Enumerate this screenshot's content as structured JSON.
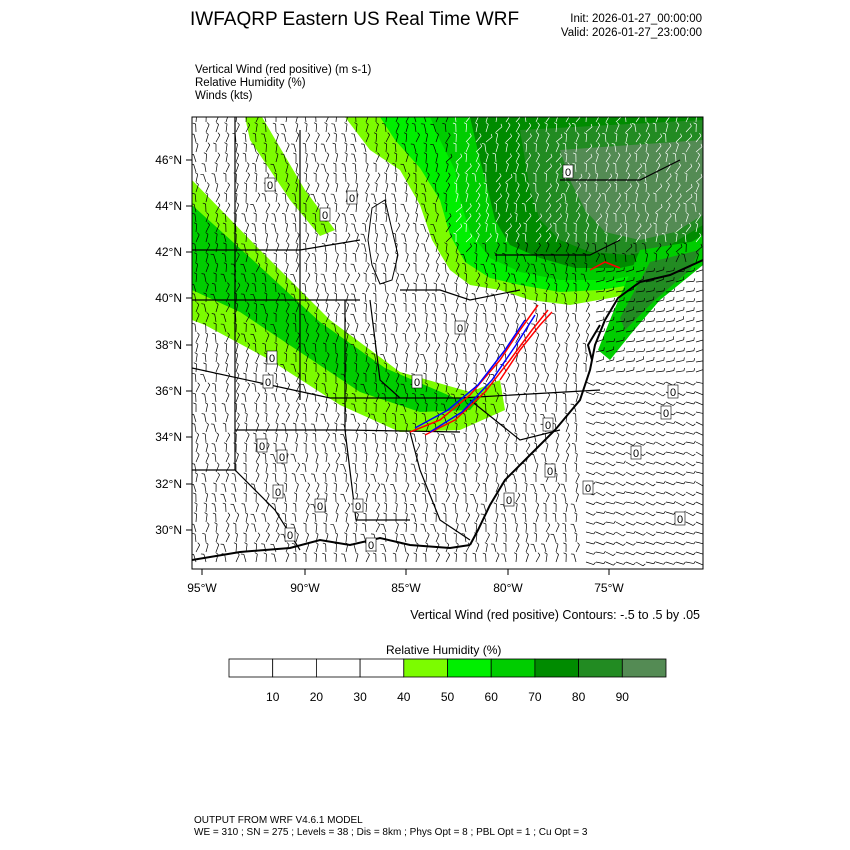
{
  "header": {
    "title": "IWFAQRP Eastern US Real Time WRF",
    "init": "Init: 2026-01-27_00:00:00",
    "valid": "Valid: 2026-01-27_23:00:00"
  },
  "fields": [
    "Vertical Wind (red positive)   (m s-1)",
    "Relative Humidity   (%)",
    "Winds   (kts)"
  ],
  "map": {
    "lat_labels": [
      "46°N",
      "44°N",
      "42°N",
      "40°N",
      "38°N",
      "36°N",
      "34°N",
      "32°N",
      "30°N"
    ],
    "lon_labels": [
      "95°W",
      "90°W",
      "85°W",
      "80°W",
      "75°W"
    ],
    "contour_zero_label": "0",
    "contour_note": "Vertical Wind (red positive) Contours: -.5 to .5 by .05"
  },
  "colorbar": {
    "title": "Relative Humidity   (%)",
    "ticks": [
      "10",
      "20",
      "30",
      "40",
      "50",
      "60",
      "70",
      "80",
      "90"
    ],
    "colors": [
      "#ffffff",
      "#ffffff",
      "#ffffff",
      "#ffffff",
      "#7cfc00",
      "#00ef00",
      "#00cd00",
      "#008b00",
      "#228b22",
      "#548b54"
    ]
  },
  "colors": {
    "rh_40": "#7cfc00",
    "rh_50": "#00ef00",
    "rh_60": "#00cd00",
    "rh_70": "#008b00",
    "rh_80": "#228b22",
    "rh_90": "#548b54",
    "positive_vertical_wind": "#ff0000",
    "negative_vertical_wind": "#0000ff"
  },
  "footer": {
    "line1": "OUTPUT FROM WRF V4.6.1 MODEL",
    "line2": "WE = 310 ; SN = 275 ; Levels = 38 ; Dis = 8km ; Phys Opt = 8 ; PBL Opt = 1 ; Cu Opt = 3"
  }
}
